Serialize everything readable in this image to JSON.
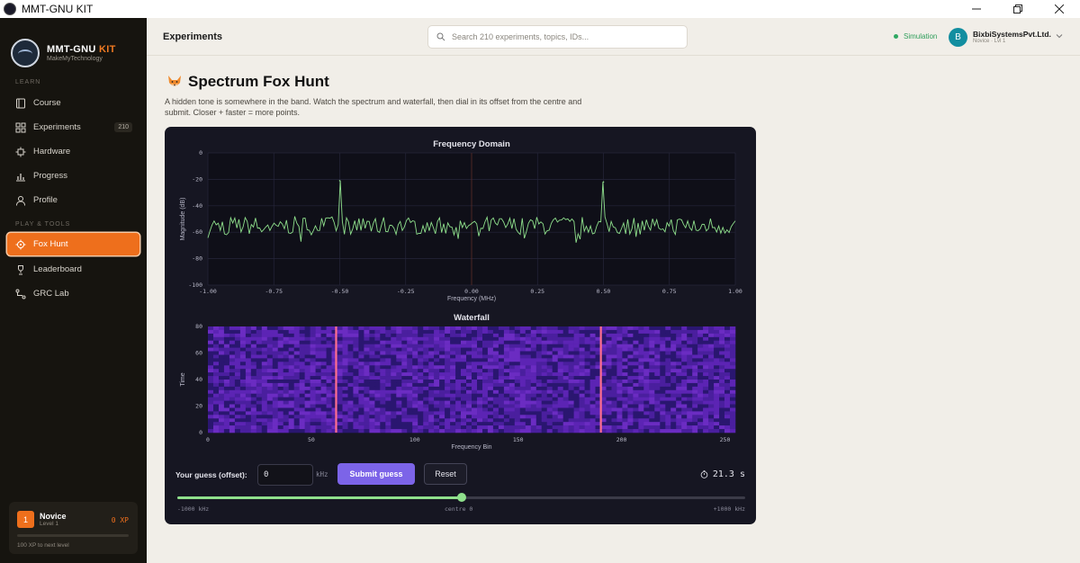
{
  "window": {
    "title": "MMT-GNU KIT"
  },
  "sidebar": {
    "brand": {
      "name": "MMT-GNU",
      "name_accent": "KIT",
      "tagline": "MakeMyTechnology"
    },
    "sections": [
      {
        "label": "LEARN",
        "items": [
          {
            "label": "Course",
            "icon": "book-icon"
          },
          {
            "label": "Experiments",
            "icon": "grid-icon",
            "badge": "210"
          },
          {
            "label": "Hardware",
            "icon": "chip-icon"
          },
          {
            "label": "Progress",
            "icon": "chart-icon"
          },
          {
            "label": "Profile",
            "icon": "user-icon"
          }
        ]
      },
      {
        "label": "PLAY & TOOLS",
        "items": [
          {
            "label": "Fox Hunt",
            "icon": "target-icon",
            "active": true
          },
          {
            "label": "Leaderboard",
            "icon": "trophy-icon"
          },
          {
            "label": "GRC Lab",
            "icon": "flow-icon"
          }
        ]
      }
    ],
    "xp": {
      "level_number": "1",
      "rank": "Novice",
      "level_label": "Level 1",
      "xp": "0 XP",
      "progress": 0,
      "next": "100 XP to next level"
    }
  },
  "header": {
    "title": "Experiments",
    "search_placeholder": "Search 210 experiments, topics, IDs...",
    "mode": "Simulation",
    "user": {
      "initial": "B",
      "name": "BixbiSystemsPvt.Ltd.",
      "sub": "Novice · Lvl 1"
    }
  },
  "page": {
    "title": "Spectrum Fox Hunt",
    "description": "A hidden tone is somewhere in the band. Watch the spectrum and waterfall, then dial in its offset from the centre and submit. Closer + faster = more points."
  },
  "colors": {
    "accent": "#ee6f1c",
    "trace": "#8fe08c",
    "tone_line": "#ff6f8f",
    "button": "#7c64e8"
  },
  "chart_data": [
    {
      "type": "line",
      "title": "Frequency Domain",
      "xlabel": "Frequency (MHz)",
      "ylabel": "Magnitude (dB)",
      "xlim": [
        -1.0,
        1.0
      ],
      "ylim": [
        -100,
        0
      ],
      "xticks": [
        "-1.00",
        "-0.75",
        "-0.50",
        "-0.25",
        "0.00",
        "0.25",
        "0.50",
        "0.75",
        "1.00"
      ],
      "yticks": [
        "0",
        "-20",
        "-40",
        "-60",
        "-80",
        "-100"
      ],
      "noise_floor_db": -55,
      "peaks": [
        {
          "x": -0.5,
          "y": -21
        },
        {
          "x": 0.5,
          "y": -22
        }
      ],
      "grid": true
    },
    {
      "type": "heatmap",
      "title": "Waterfall",
      "xlabel": "Frequency Bin",
      "ylabel": "Time",
      "xlim": [
        0,
        255
      ],
      "ylim": [
        0,
        80
      ],
      "xticks": [
        "0",
        "50",
        "100",
        "150",
        "200",
        "250"
      ],
      "yticks": [
        "0",
        "20",
        "40",
        "60",
        "80"
      ],
      "tone_bins": [
        62,
        190
      ]
    }
  ],
  "controls": {
    "guess_label": "Your guess (offset):",
    "guess_value": "0",
    "unit": "kHz",
    "submit_label": "Submit guess",
    "reset_label": "Reset",
    "timer": "21.3 s",
    "slider": {
      "value_khz": 0,
      "min_label": "-1000 kHz",
      "mid_label": "centre 0",
      "max_label": "+1000 kHz"
    }
  }
}
